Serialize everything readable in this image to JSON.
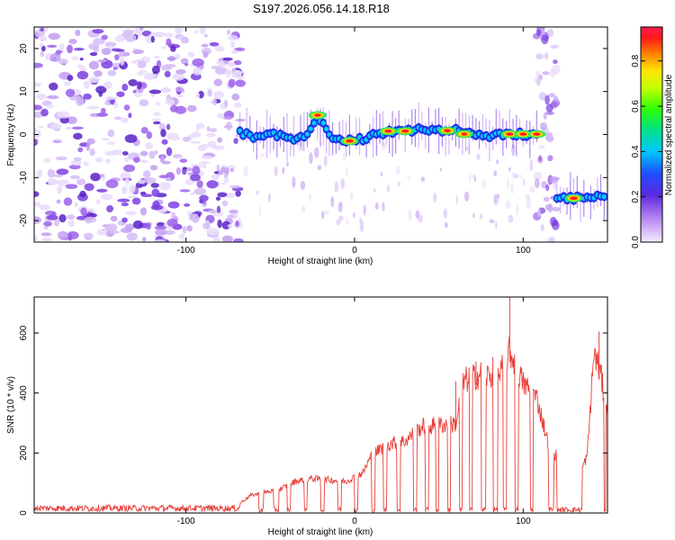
{
  "figure_title": "S197.2026.056.14.18.R18",
  "colors": {
    "snr_line": "#e8403a",
    "cloud": "#7b3fe0",
    "axis": "#000000"
  },
  "chart_data": [
    {
      "type": "heatmap",
      "title": "S197.2026.056.14.18.R18",
      "xlabel": "Height of straight line (km)",
      "ylabel": "Frequency (Hz)",
      "xlim": [
        -190,
        150
      ],
      "ylim": [
        -25,
        25
      ],
      "xticks": [
        -100,
        0,
        100
      ],
      "xtick_labels": [
        "-100",
        "0",
        "100"
      ],
      "yticks": [
        -20,
        -10,
        0,
        10,
        20
      ],
      "ytick_labels": [
        "-20",
        "-10",
        "0",
        "10",
        "20"
      ],
      "colorbar": {
        "label": "Normalized spectral amplitude",
        "range": [
          0,
          0.95
        ],
        "ticks": [
          0.0,
          0.2,
          0.4,
          0.6,
          0.8
        ],
        "tick_labels": [
          "0.0",
          "0.2",
          "0.4",
          "0.6",
          "0.8"
        ]
      },
      "noise_region_x": [
        -190,
        -67
      ],
      "edge_column_x": [
        108,
        120
      ],
      "ridge": [
        {
          "x": -68,
          "f": 0.5
        },
        {
          "x": -60,
          "f": -0.5
        },
        {
          "x": -50,
          "f": 0.2
        },
        {
          "x": -40,
          "f": -0.8
        },
        {
          "x": -30,
          "f": -1.0
        },
        {
          "x": -22,
          "f": 4.5
        },
        {
          "x": -15,
          "f": -0.3
        },
        {
          "x": -5,
          "f": -1.5
        },
        {
          "x": 5,
          "f": -1.0
        },
        {
          "x": 15,
          "f": 0.3
        },
        {
          "x": 30,
          "f": 0.8
        },
        {
          "x": 40,
          "f": 1.2
        },
        {
          "x": 50,
          "f": 0.8
        },
        {
          "x": 60,
          "f": 0.9
        },
        {
          "x": 70,
          "f": 0.2
        },
        {
          "x": 80,
          "f": -0.2
        },
        {
          "x": 90,
          "f": 0.0
        },
        {
          "x": 100,
          "f": 0.1
        },
        {
          "x": 110,
          "f": 0.2
        }
      ],
      "ridge_low": [
        {
          "x": 120,
          "f": -14.5
        },
        {
          "x": 130,
          "f": -14.8
        },
        {
          "x": 140,
          "f": -14.5
        },
        {
          "x": 150,
          "f": -14.6
        }
      ],
      "peaks": [
        {
          "x": -3,
          "f": -1.5,
          "amp": 0.95
        },
        {
          "x": 20,
          "f": 0.8,
          "amp": 0.9
        },
        {
          "x": 30,
          "f": 0.8,
          "amp": 0.9
        },
        {
          "x": 55,
          "f": 0.9,
          "amp": 0.85
        },
        {
          "x": 65,
          "f": 0.1,
          "amp": 0.7
        },
        {
          "x": 92,
          "f": 0.1,
          "amp": 0.9
        },
        {
          "x": 100,
          "f": 0.1,
          "amp": 0.9
        },
        {
          "x": 108,
          "f": 0.1,
          "amp": 0.9
        },
        {
          "x": 130,
          "f": -14.8,
          "amp": 0.95
        },
        {
          "x": -22,
          "f": 4.5,
          "amp": 0.8
        }
      ]
    },
    {
      "type": "line",
      "xlabel": "Height of straight line (km)",
      "ylabel": "SNR (10 * v/v)",
      "xlim": [
        -190,
        150
      ],
      "ylim": [
        0,
        720
      ],
      "xticks": [
        -100,
        0,
        100
      ],
      "xtick_labels": [
        "-100",
        "0",
        "100"
      ],
      "yticks": [
        0,
        200,
        400,
        600
      ],
      "ytick_labels": [
        "0",
        "200",
        "400",
        "600"
      ],
      "series": [
        {
          "name": "SNR",
          "envelope": [
            {
              "x": -190,
              "y": 22
            },
            {
              "x": -150,
              "y": 20
            },
            {
              "x": -110,
              "y": 22
            },
            {
              "x": -70,
              "y": 25
            },
            {
              "x": -62,
              "y": 60
            },
            {
              "x": -55,
              "y": 70
            },
            {
              "x": -45,
              "y": 80
            },
            {
              "x": -35,
              "y": 110
            },
            {
              "x": -25,
              "y": 120
            },
            {
              "x": -15,
              "y": 115
            },
            {
              "x": -5,
              "y": 110
            },
            {
              "x": 5,
              "y": 140
            },
            {
              "x": 10,
              "y": 200
            },
            {
              "x": 20,
              "y": 240
            },
            {
              "x": 30,
              "y": 250
            },
            {
              "x": 40,
              "y": 300
            },
            {
              "x": 50,
              "y": 305
            },
            {
              "x": 60,
              "y": 310
            },
            {
              "x": 65,
              "y": 460
            },
            {
              "x": 75,
              "y": 480
            },
            {
              "x": 85,
              "y": 470
            },
            {
              "x": 92,
              "y": 560
            },
            {
              "x": 100,
              "y": 450
            },
            {
              "x": 108,
              "y": 400
            },
            {
              "x": 115,
              "y": 240
            },
            {
              "x": 125,
              "y": 150
            },
            {
              "x": 133,
              "y": 125
            },
            {
              "x": 138,
              "y": 200
            },
            {
              "x": 142,
              "y": 560
            },
            {
              "x": 146,
              "y": 480
            },
            {
              "x": 150,
              "y": 330
            }
          ],
          "dropouts": [
            [
              -57,
              -54
            ],
            [
              -48,
              -45
            ],
            [
              -40,
              -38
            ],
            [
              -30,
              -28
            ],
            [
              -20,
              -18
            ],
            [
              -10,
              -8
            ],
            [
              0,
              2
            ],
            [
              10,
              12
            ],
            [
              17,
              19
            ],
            [
              25,
              27
            ],
            [
              35,
              37
            ],
            [
              42,
              44
            ],
            [
              48,
              50
            ],
            [
              55,
              57
            ],
            [
              62,
              64
            ],
            [
              68,
              70
            ],
            [
              75,
              78
            ],
            [
              82,
              85
            ],
            [
              88,
              90
            ],
            [
              95,
              97
            ],
            [
              104,
              106
            ],
            [
              115,
              118
            ],
            [
              120,
              135
            ],
            [
              148,
              149
            ]
          ],
          "spikes": [
            {
              "x": 92,
              "y": 720
            },
            {
              "x": 145,
              "y": 605
            },
            {
              "x": 82,
              "y": 520
            },
            {
              "x": 72,
              "y": 505
            },
            {
              "x": 60,
              "y": 440
            }
          ]
        }
      ]
    }
  ]
}
